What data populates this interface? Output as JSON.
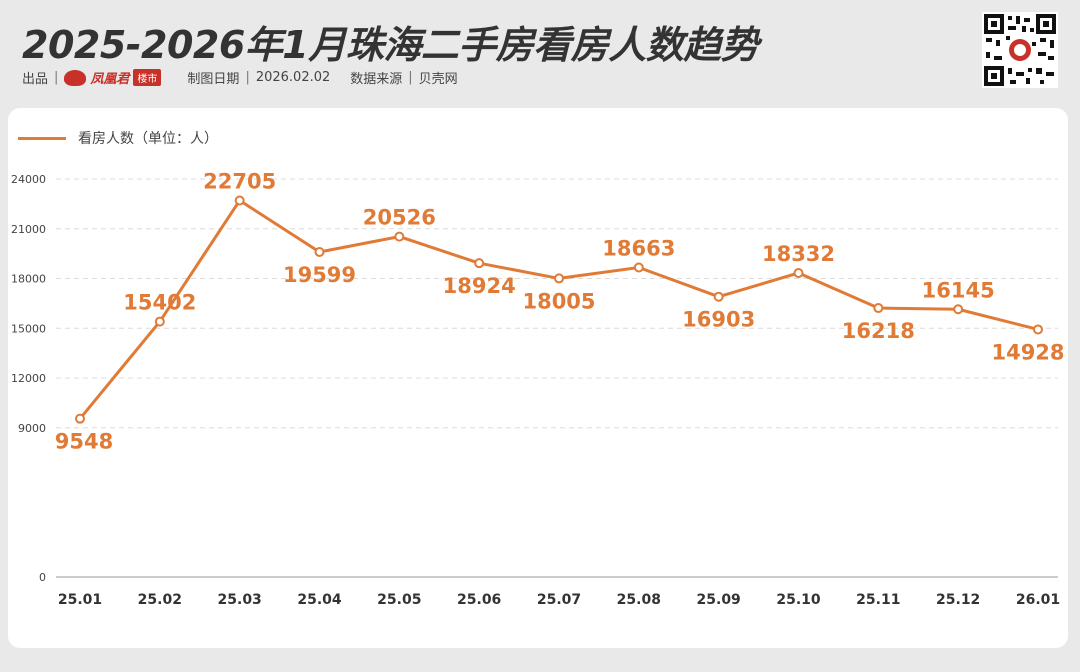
{
  "header": {
    "title": "2025-2026年1月珠海二手房看房人数趋势",
    "source_prefix": "出品",
    "logo_text": "凤凰君",
    "logo_badge": "楼市",
    "date_label": "制图日期",
    "date_value": "2026.02.02",
    "source_label": "数据来源",
    "source_value": "贝壳网"
  },
  "colors": {
    "line": "#e07a35",
    "brand": "#c8312a"
  },
  "chart_data": {
    "type": "line",
    "categories": [
      "25.01",
      "25.02",
      "25.03",
      "25.04",
      "25.05",
      "25.06",
      "25.07",
      "25.08",
      "25.09",
      "25.10",
      "25.11",
      "25.12",
      "26.01"
    ],
    "series": [
      {
        "name": "看房人数（单位：人）",
        "values": [
          9548,
          15402,
          22705,
          19599,
          20526,
          18924,
          18005,
          18663,
          16903,
          18332,
          16218,
          16145,
          14928
        ],
        "labels": [
          "9548",
          "15402",
          "22705",
          "19599",
          "20526",
          "18924",
          "18005",
          "18663",
          "16903",
          "18332",
          "16218",
          "16145",
          "14928"
        ]
      }
    ],
    "yticks": [
      "0",
      "9000",
      "12000",
      "15000",
      "18000",
      "21000",
      "24000"
    ],
    "ylim": [
      0,
      24000
    ],
    "grid": true,
    "legend": "top-left"
  }
}
